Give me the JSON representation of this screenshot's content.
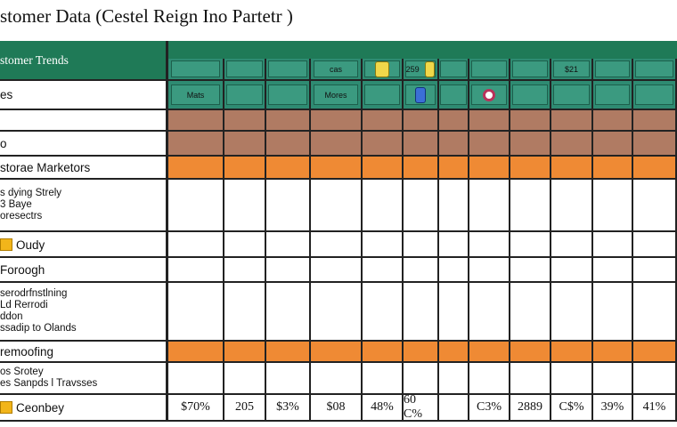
{
  "title": "stomer Data (Cestel Reign Ino Partetr )",
  "labels": [
    {
      "text": "stomer Trends",
      "style": "green"
    },
    {
      "text": "es"
    },
    {
      "text": ""
    },
    {
      "text": "o"
    },
    {
      "text": "storae Marketors"
    },
    {
      "lines": [
        "s dying Strely",
        "3 Baye",
        "oresectrs"
      ]
    },
    {
      "text": "Oudy",
      "square": true
    },
    {
      "text": "Foroogh"
    },
    {
      "lines": [
        "serodrfnstlning",
        "Ld Rerrodi",
        "ddon",
        "ssadip to Olands"
      ]
    },
    {
      "text": "remoofing"
    },
    {
      "lines": [
        "os Srotey",
        "es Sanpds l Travsses"
      ]
    },
    {
      "text": "Ceonbey",
      "square": true
    }
  ],
  "header_row1": [
    "",
    "",
    "",
    "cas",
    "",
    "259",
    "",
    "",
    "",
    "$21",
    "",
    ""
  ],
  "header_row2": [
    "Mats",
    "",
    "",
    "Mores",
    "",
    "",
    "",
    "",
    "",
    "",
    "",
    ""
  ],
  "totals": [
    "$70%",
    "205",
    "$3%",
    "$08",
    "48%",
    "60 C%",
    "",
    "C3%",
    "2889",
    "C$%",
    "39%",
    "41%"
  ],
  "icons": {
    "row1_col4": "yellow-chip-icon",
    "row2_col5": "person-icon",
    "row2_col7": "ring-icon"
  },
  "colors": {
    "green": "#1f7a57",
    "teal": "#2e8b72",
    "brown": "#b07b63",
    "orange": "#ef8a34"
  }
}
